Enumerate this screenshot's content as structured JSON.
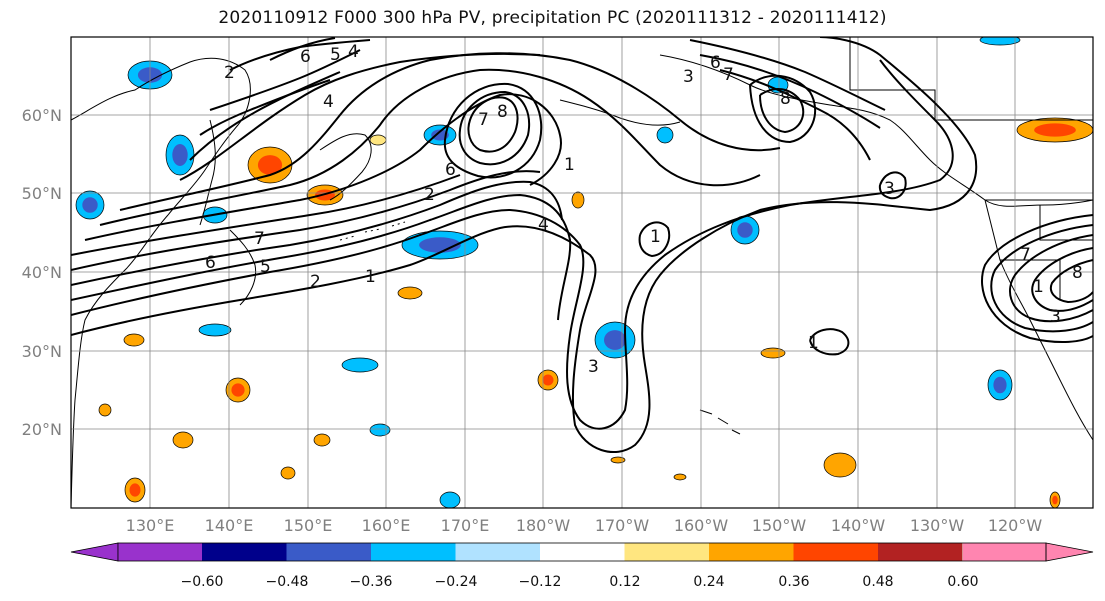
{
  "title": "2020110912 F000 300 hPa PV, precipitation PC (2020111312 - 2020111412)",
  "lat_labels": [
    "60°N",
    "50°N",
    "40°N",
    "30°N",
    "20°N"
  ],
  "lon_labels": [
    "130°E",
    "140°E",
    "150°E",
    "160°E",
    "170°E",
    "180°W",
    "170°W",
    "160°W",
    "150°W",
    "140°W",
    "130°W",
    "120°W"
  ],
  "contour_labels": [
    "6",
    "5",
    "4",
    "2",
    "4",
    "6",
    "7",
    "8",
    "1",
    "3",
    "6",
    "7",
    "8",
    "3",
    "2",
    "1",
    "6",
    "5",
    "7",
    "4",
    "1",
    "2",
    "3",
    "1",
    "7",
    "8",
    "3",
    "1"
  ],
  "colorbar": {
    "ticks": [
      "−0.60",
      "−0.48",
      "−0.36",
      "−0.24",
      "−0.12",
      "0.12",
      "0.24",
      "0.36",
      "0.48",
      "0.60"
    ],
    "colors": [
      "#9932cc",
      "#00008b",
      "#3a5bc8",
      "#00bfff",
      "#b0e2ff",
      "#ffffff",
      "#ffe680",
      "#ffa500",
      "#ff4500",
      "#b22222",
      "#ff85b0"
    ]
  }
}
